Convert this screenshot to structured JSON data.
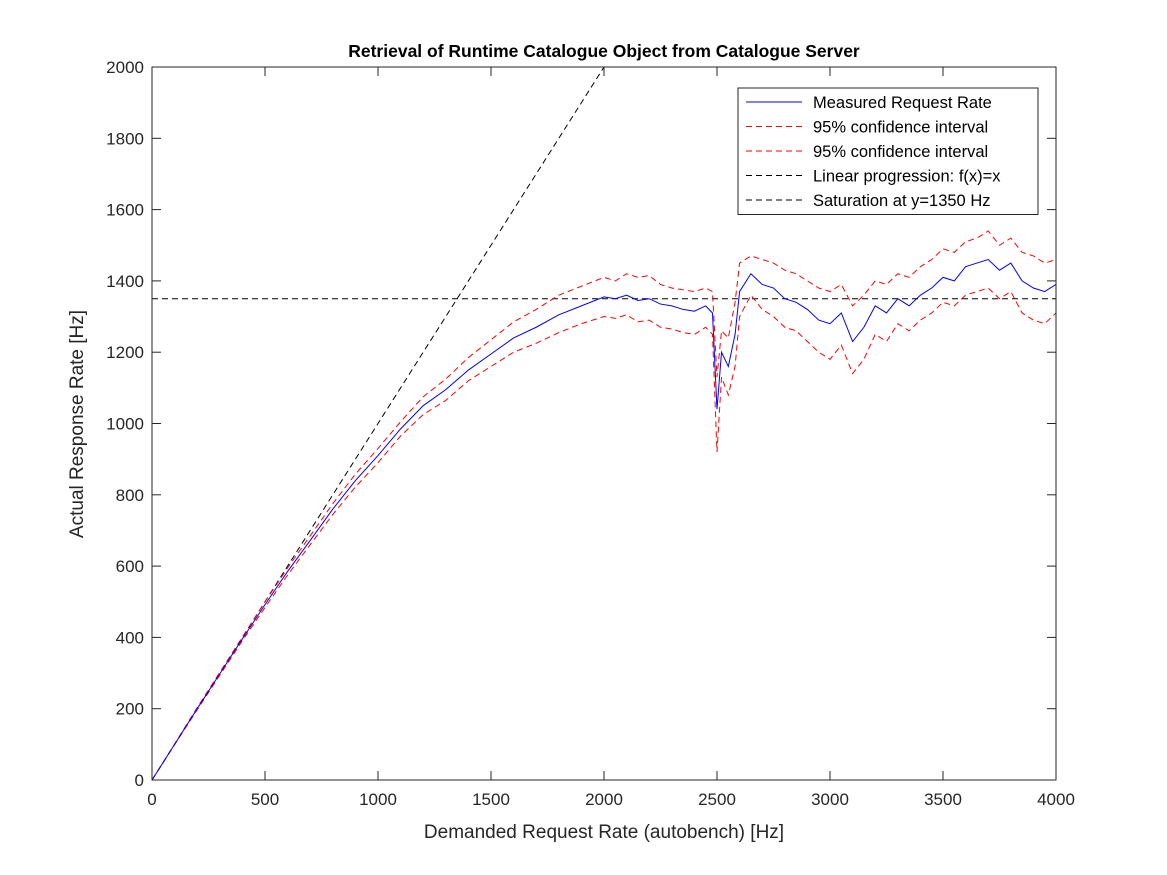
{
  "chart_data": {
    "type": "line",
    "title": "Retrieval of Runtime Catalogue Object from Catalogue Server",
    "xlabel": "Demanded Request Rate (autobench) [Hz]",
    "ylabel": "Actual Response Rate [Hz]",
    "xlim": [
      0,
      4000
    ],
    "ylim": [
      0,
      2000
    ],
    "xticks": [
      0,
      500,
      1000,
      1500,
      2000,
      2500,
      3000,
      3500,
      4000
    ],
    "yticks": [
      0,
      200,
      400,
      600,
      800,
      1000,
      1200,
      1400,
      1600,
      1800,
      2000
    ],
    "grid": false,
    "legend_position": "top-right",
    "saturation_level": 1350,
    "series": [
      {
        "name": "Measured Request Rate",
        "color": "#0000ff",
        "style": "solid",
        "x": [
          0,
          100,
          200,
          300,
          400,
          500,
          600,
          700,
          800,
          900,
          1000,
          1100,
          1200,
          1300,
          1400,
          1500,
          1600,
          1700,
          1800,
          1900,
          2000,
          2050,
          2100,
          2150,
          2200,
          2250,
          2300,
          2350,
          2400,
          2450,
          2480,
          2500,
          2520,
          2550,
          2580,
          2600,
          2650,
          2700,
          2750,
          2800,
          2850,
          2900,
          2950,
          3000,
          3050,
          3100,
          3150,
          3200,
          3250,
          3300,
          3350,
          3400,
          3450,
          3500,
          3550,
          3600,
          3650,
          3700,
          3750,
          3800,
          3850,
          3900,
          3950,
          4000
        ],
        "y": [
          0,
          100,
          200,
          298,
          396,
          492,
          585,
          672,
          760,
          840,
          910,
          985,
          1050,
          1095,
          1150,
          1195,
          1240,
          1270,
          1305,
          1330,
          1355,
          1350,
          1360,
          1345,
          1350,
          1335,
          1330,
          1320,
          1315,
          1330,
          1310,
          1040,
          1200,
          1160,
          1250,
          1370,
          1420,
          1390,
          1380,
          1350,
          1340,
          1320,
          1290,
          1280,
          1310,
          1230,
          1270,
          1330,
          1310,
          1350,
          1330,
          1360,
          1380,
          1410,
          1400,
          1440,
          1450,
          1460,
          1430,
          1450,
          1400,
          1380,
          1370,
          1390
        ]
      },
      {
        "name": "95% confidence interval",
        "color": "#ff0000",
        "style": "dashed",
        "x": [
          0,
          100,
          200,
          300,
          400,
          500,
          600,
          700,
          800,
          900,
          1000,
          1100,
          1200,
          1300,
          1400,
          1500,
          1600,
          1700,
          1800,
          1900,
          2000,
          2050,
          2100,
          2150,
          2200,
          2250,
          2300,
          2350,
          2400,
          2450,
          2480,
          2500,
          2520,
          2550,
          2580,
          2600,
          2650,
          2700,
          2750,
          2800,
          2850,
          2900,
          2950,
          3000,
          3050,
          3100,
          3150,
          3200,
          3250,
          3300,
          3350,
          3400,
          3450,
          3500,
          3550,
          3600,
          3650,
          3700,
          3750,
          3800,
          3850,
          3900,
          3950,
          4000
        ],
        "y": [
          0,
          101,
          203,
          302,
          401,
          500,
          595,
          685,
          775,
          858,
          930,
          1005,
          1075,
          1125,
          1185,
          1235,
          1285,
          1320,
          1360,
          1385,
          1410,
          1400,
          1420,
          1410,
          1415,
          1390,
          1380,
          1375,
          1370,
          1380,
          1370,
          1130,
          1260,
          1240,
          1340,
          1450,
          1470,
          1460,
          1450,
          1430,
          1420,
          1400,
          1380,
          1370,
          1390,
          1330,
          1360,
          1400,
          1390,
          1420,
          1410,
          1440,
          1460,
          1490,
          1480,
          1510,
          1520,
          1540,
          1500,
          1520,
          1480,
          1470,
          1450,
          1460
        ]
      },
      {
        "name": "95% confidence interval",
        "color": "#ff0000",
        "style": "dashed",
        "x": [
          0,
          100,
          200,
          300,
          400,
          500,
          600,
          700,
          800,
          900,
          1000,
          1100,
          1200,
          1300,
          1400,
          1500,
          1600,
          1700,
          1800,
          1900,
          2000,
          2050,
          2100,
          2150,
          2200,
          2250,
          2300,
          2350,
          2400,
          2450,
          2480,
          2500,
          2520,
          2550,
          2580,
          2600,
          2650,
          2700,
          2750,
          2800,
          2850,
          2900,
          2950,
          3000,
          3050,
          3100,
          3150,
          3200,
          3250,
          3300,
          3350,
          3400,
          3450,
          3500,
          3550,
          3600,
          3650,
          3700,
          3750,
          3800,
          3850,
          3900,
          3950,
          4000
        ],
        "y": [
          0,
          99,
          197,
          294,
          391,
          484,
          575,
          660,
          745,
          822,
          890,
          965,
          1025,
          1065,
          1120,
          1160,
          1200,
          1225,
          1255,
          1280,
          1300,
          1295,
          1305,
          1285,
          1290,
          1270,
          1265,
          1255,
          1250,
          1270,
          1250,
          920,
          1130,
          1080,
          1160,
          1300,
          1360,
          1320,
          1300,
          1270,
          1260,
          1230,
          1200,
          1180,
          1220,
          1140,
          1180,
          1250,
          1230,
          1280,
          1260,
          1290,
          1310,
          1340,
          1330,
          1360,
          1370,
          1380,
          1350,
          1370,
          1310,
          1290,
          1280,
          1310
        ]
      },
      {
        "name": "Linear progression: f(x)=x",
        "color": "#000000",
        "style": "dashed",
        "x": [
          0,
          2000
        ],
        "y": [
          0,
          2000
        ]
      },
      {
        "name": "Saturation at y=1350 Hz",
        "color": "#000000",
        "style": "dashed",
        "x": [
          0,
          4000
        ],
        "y": [
          1350,
          1350
        ]
      }
    ]
  }
}
